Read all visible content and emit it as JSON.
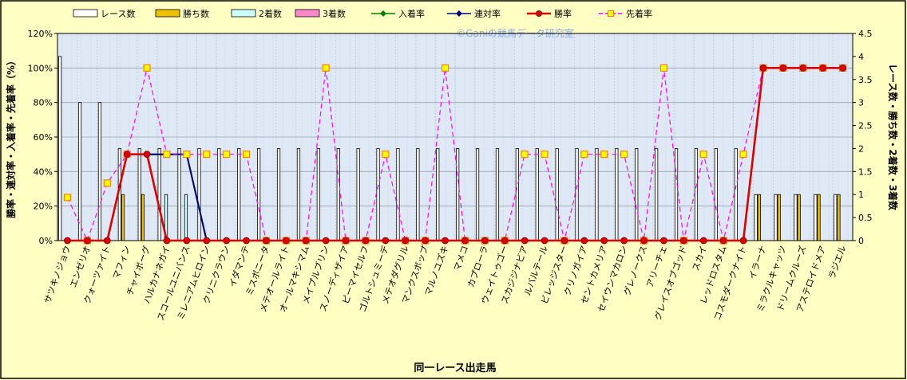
{
  "chart_data": {
    "type": "bar+line",
    "title": "",
    "watermark": "©Ganiの競馬データ研究室",
    "xlabel": "同一レース出走馬",
    "ylabel_left": "勝率・連対率・入着率・先着率（%）",
    "ylabel_right": "レース数・勝ち数・2着数・3着数",
    "left_axis": {
      "min": 0,
      "max": 120,
      "step": 20,
      "tick_suffix": "%"
    },
    "right_axis": {
      "min": 0,
      "max": 4.5,
      "step": 0.5
    },
    "grid": true,
    "legend_position": "top",
    "plot_background": "#dfe9f5",
    "categories": [
      "サツキノジョウ",
      "エンゼリオ",
      "クォーツァイト",
      "マフィン",
      "チャイボーグ",
      "ハルカナネガイ",
      "スコールユニバンス",
      "ミレニアムヒロイン",
      "クリニクラウン",
      "イダマンテ",
      "ミスボニータ",
      "メテオールライト",
      "オールマキシマム",
      "メイプルブリン",
      "スノーディザイア",
      "ピーマイセルフ",
      "ゴルトシュミーデ",
      "メテオダグリル",
      "マンクスボップ",
      "マルノユズキ",
      "マメコ",
      "カプローラ",
      "ウェイトゥゴー",
      "スカジジナビア",
      "ルバルテール",
      "ビレッジスター",
      "クリノガイア",
      "セントカメリア",
      "セイウンマカロン",
      "グレノークス",
      "アリーチェ",
      "グレイスオブゴッド",
      "スカイ",
      "レッドロスタム",
      "コスモダークナイト",
      "イラーナ",
      "ミラクルキャッツ",
      "ドリームクルーズ",
      "アステロイドメア",
      "ラジエル"
    ],
    "series": [
      {
        "name": "レース数",
        "type": "bar",
        "axis": "right",
        "color": "#ffffff",
        "values": [
          4,
          3,
          3,
          2,
          2,
          2,
          2,
          2,
          2,
          2,
          2,
          2,
          2,
          2,
          2,
          2,
          2,
          2,
          2,
          2,
          2,
          2,
          2,
          2,
          2,
          2,
          2,
          2,
          2,
          2,
          2,
          2,
          2,
          2,
          2,
          1,
          1,
          1,
          1,
          1
        ]
      },
      {
        "name": "勝ち数",
        "type": "bar",
        "axis": "right",
        "color": "#f0c000",
        "values": [
          0,
          0,
          0,
          1,
          1,
          0,
          0,
          0,
          0,
          0,
          0,
          0,
          0,
          0,
          0,
          0,
          0,
          0,
          0,
          0,
          0,
          0,
          0,
          0,
          0,
          0,
          0,
          0,
          0,
          0,
          0,
          0,
          0,
          0,
          0,
          1,
          1,
          1,
          1,
          1
        ]
      },
      {
        "name": "2着数",
        "type": "bar",
        "axis": "right",
        "color": "#ccffff",
        "values": [
          0,
          0,
          0,
          0,
          0,
          1,
          1,
          0,
          0,
          0,
          0,
          0,
          0,
          0,
          0,
          0,
          0,
          0,
          0,
          0,
          0,
          0,
          0,
          0,
          0,
          0,
          0,
          0,
          0,
          0,
          0,
          0,
          0,
          0,
          0,
          0,
          0,
          0,
          0,
          0
        ]
      },
      {
        "name": "3着数",
        "type": "bar",
        "axis": "right",
        "color": "#ff88cc",
        "values": [
          0,
          0,
          0,
          0,
          0,
          0,
          0,
          0,
          0,
          0,
          0,
          0,
          0,
          0,
          0,
          0,
          0,
          0,
          0,
          0,
          0,
          0,
          0,
          0,
          0,
          0,
          0,
          0,
          0,
          0,
          0,
          0,
          0,
          0,
          0,
          0,
          0,
          0,
          0,
          0
        ]
      },
      {
        "name": "入着率",
        "type": "line",
        "axis": "left",
        "color": "#008000",
        "marker": "diamond",
        "values": [
          0,
          0,
          0,
          50,
          50,
          50,
          50,
          0,
          0,
          0,
          0,
          0,
          0,
          0,
          0,
          0,
          0,
          0,
          0,
          0,
          0,
          0,
          0,
          0,
          0,
          0,
          0,
          0,
          0,
          0,
          0,
          0,
          0,
          0,
          0,
          100,
          100,
          100,
          100,
          100
        ]
      },
      {
        "name": "連対率",
        "type": "line",
        "axis": "left",
        "color": "#000080",
        "marker": "diamond",
        "values": [
          0,
          0,
          0,
          50,
          50,
          50,
          50,
          0,
          0,
          0,
          0,
          0,
          0,
          0,
          0,
          0,
          0,
          0,
          0,
          0,
          0,
          0,
          0,
          0,
          0,
          0,
          0,
          0,
          0,
          0,
          0,
          0,
          0,
          0,
          0,
          100,
          100,
          100,
          100,
          100
        ]
      },
      {
        "name": "勝率",
        "type": "line",
        "axis": "left",
        "color": "#e00000",
        "marker": "circle",
        "values": [
          0,
          0,
          0,
          50,
          50,
          0,
          0,
          0,
          0,
          0,
          0,
          0,
          0,
          0,
          0,
          0,
          0,
          0,
          0,
          0,
          0,
          0,
          0,
          0,
          0,
          0,
          0,
          0,
          0,
          0,
          0,
          0,
          0,
          0,
          0,
          100,
          100,
          100,
          100,
          100
        ]
      },
      {
        "name": "先着率",
        "type": "line",
        "axis": "left",
        "color": "#ff00ff",
        "dash": true,
        "marker": "square",
        "marker_fill": "#ffff00",
        "marker_stroke": "#ff8000",
        "values": [
          25,
          0,
          33.3,
          50,
          100,
          50,
          50,
          50,
          50,
          50,
          0,
          0,
          0,
          100,
          0,
          0,
          50,
          0,
          0,
          100,
          0,
          0,
          0,
          50,
          50,
          0,
          50,
          50,
          50,
          0,
          100,
          0,
          50,
          0,
          50,
          100,
          100,
          100,
          100,
          100
        ]
      }
    ]
  }
}
